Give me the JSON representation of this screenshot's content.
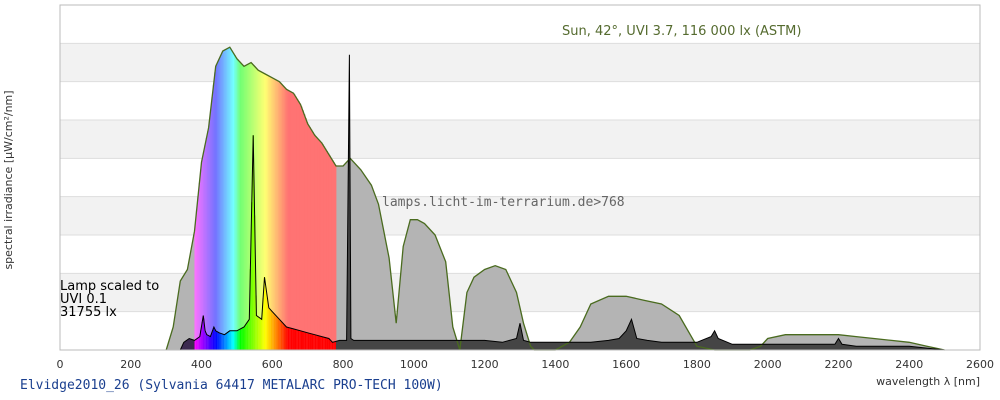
{
  "chart_data": {
    "type": "area",
    "xlabel": "wavelength λ [nm]",
    "ylabel": "spectral irradiance [µW/cm²/nm]",
    "xlim": [
      0,
      2600
    ],
    "x_ticks": [
      0,
      200,
      400,
      600,
      800,
      1000,
      1200,
      1400,
      1600,
      1800,
      2000,
      2200,
      2400,
      2600
    ],
    "ylim": [
      0,
      9
    ],
    "grid": "alternating horizontal bands",
    "sun_label": "Sun, 42°, UVI 3.7, 116 000 lx (ASTM)",
    "watermark": "lamps.licht-im-terrarium.de>768",
    "lamp_note": [
      "Lamp scaled to",
      "UVI 0.1",
      "31755 lx"
    ],
    "caption": "Elvidge2010_26 (Sylvania 64417 METALARC PRO-TECH 100W)",
    "series": [
      {
        "name": "Sun",
        "x": [
          300,
          320,
          340,
          360,
          380,
          400,
          420,
          440,
          460,
          480,
          500,
          520,
          540,
          560,
          580,
          600,
          620,
          640,
          660,
          680,
          700,
          720,
          740,
          760,
          780,
          800,
          820,
          850,
          880,
          900,
          930,
          950,
          970,
          990,
          1010,
          1030,
          1060,
          1090,
          1110,
          1130,
          1150,
          1170,
          1200,
          1230,
          1260,
          1290,
          1310,
          1330,
          1340,
          1360,
          1400,
          1440,
          1470,
          1500,
          1550,
          1600,
          1650,
          1700,
          1750,
          1800,
          1850,
          1900,
          1950,
          1980,
          2000,
          2050,
          2100,
          2150,
          2200,
          2250,
          2300,
          2350,
          2400,
          2450,
          2500
        ],
        "y": [
          0.0,
          0.6,
          1.8,
          2.1,
          3.1,
          4.9,
          5.8,
          7.4,
          7.8,
          7.9,
          7.6,
          7.4,
          7.5,
          7.3,
          7.2,
          7.1,
          7.0,
          6.8,
          6.7,
          6.4,
          5.9,
          5.6,
          5.4,
          5.1,
          4.8,
          4.8,
          5.0,
          4.7,
          4.3,
          3.8,
          2.4,
          0.7,
          2.7,
          3.4,
          3.4,
          3.3,
          3.0,
          2.3,
          0.6,
          0.0,
          1.5,
          1.9,
          2.1,
          2.2,
          2.1,
          1.5,
          0.7,
          0.1,
          0.0,
          0.0,
          0.0,
          0.2,
          0.6,
          1.2,
          1.4,
          1.4,
          1.3,
          1.2,
          0.9,
          0.1,
          0.0,
          0.0,
          0.0,
          0.1,
          0.3,
          0.4,
          0.4,
          0.4,
          0.4,
          0.35,
          0.3,
          0.25,
          0.2,
          0.1,
          0.0
        ]
      },
      {
        "name": "Lamp",
        "x": [
          340,
          350,
          365,
          380,
          395,
          405,
          410,
          415,
          425,
          435,
          440,
          450,
          465,
          480,
          500,
          520,
          535,
          546,
          555,
          570,
          578,
          590,
          600,
          620,
          640,
          660,
          680,
          700,
          720,
          740,
          760,
          770,
          790,
          810,
          818,
          822,
          830,
          850,
          900,
          950,
          1000,
          1050,
          1100,
          1150,
          1200,
          1250,
          1290,
          1300,
          1310,
          1330,
          1400,
          1450,
          1500,
          1550,
          1580,
          1600,
          1615,
          1630,
          1660,
          1700,
          1800,
          1840,
          1850,
          1860,
          1900,
          1950,
          2000,
          2100,
          2190,
          2200,
          2210,
          2250,
          2300,
          2400,
          2500
        ],
        "y": [
          0.0,
          0.2,
          0.3,
          0.25,
          0.35,
          0.9,
          0.5,
          0.4,
          0.35,
          0.6,
          0.5,
          0.45,
          0.4,
          0.5,
          0.5,
          0.6,
          0.8,
          5.6,
          0.9,
          0.8,
          1.9,
          1.1,
          1.0,
          0.8,
          0.6,
          0.55,
          0.5,
          0.45,
          0.4,
          0.35,
          0.3,
          0.2,
          0.25,
          0.25,
          7.7,
          0.3,
          0.25,
          0.25,
          0.25,
          0.25,
          0.25,
          0.25,
          0.25,
          0.25,
          0.25,
          0.2,
          0.3,
          0.7,
          0.25,
          0.2,
          0.2,
          0.2,
          0.2,
          0.25,
          0.3,
          0.5,
          0.8,
          0.3,
          0.25,
          0.2,
          0.2,
          0.35,
          0.5,
          0.3,
          0.15,
          0.15,
          0.15,
          0.15,
          0.15,
          0.3,
          0.15,
          0.1,
          0.1,
          0.1,
          0.0
        ]
      }
    ]
  }
}
